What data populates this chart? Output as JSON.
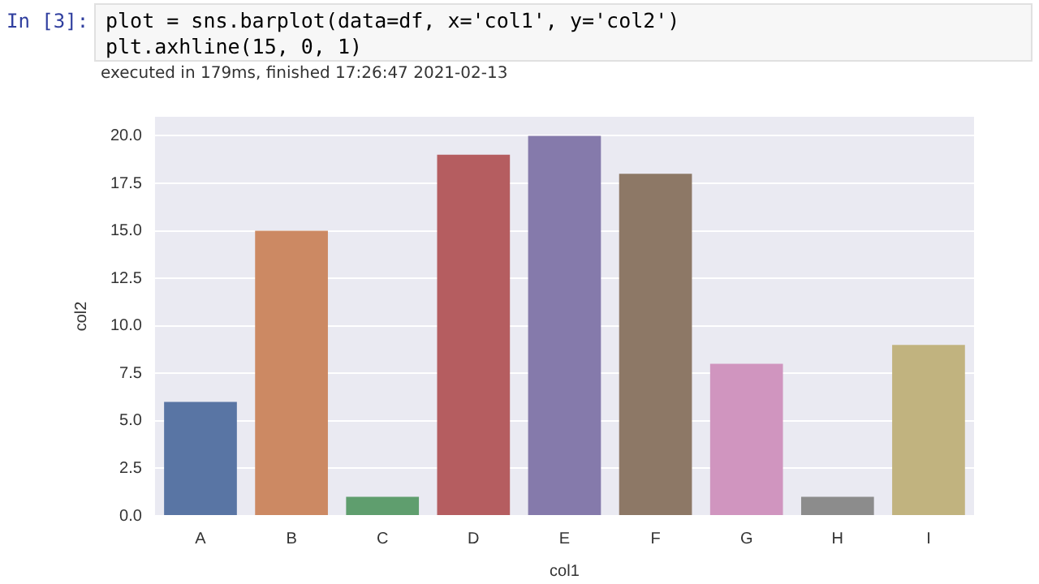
{
  "chart_data": {
    "type": "bar",
    "xlabel": "col1",
    "ylabel": "col2",
    "categories": [
      "A",
      "B",
      "C",
      "D",
      "E",
      "F",
      "G",
      "H",
      "I"
    ],
    "values": [
      6,
      15,
      1,
      19,
      20,
      18,
      8,
      1,
      9
    ],
    "colors": [
      "#5975a4",
      "#cc8963",
      "#5f9e6e",
      "#b55d60",
      "#857aab",
      "#8d7866",
      "#d095bf",
      "#8c8c8c",
      "#c1b37f"
    ],
    "ylim": [
      0,
      21
    ],
    "yticks": [
      {
        "value": 0,
        "label": "0.0"
      },
      {
        "value": 2.5,
        "label": "2.5"
      },
      {
        "value": 5,
        "label": "5.0"
      },
      {
        "value": 7.5,
        "label": "7.5"
      },
      {
        "value": 10,
        "label": "10.0"
      },
      {
        "value": 12.5,
        "label": "12.5"
      },
      {
        "value": 15,
        "label": "15.0"
      },
      {
        "value": 17.5,
        "label": "17.5"
      },
      {
        "value": 20,
        "label": "20.0"
      }
    ],
    "grid": "y",
    "annotations": [
      "In [3]:",
      "plot = sns.barplot(data=df, x='col1', y='col2')",
      "plt.axhline(15, 0, 1)",
      "executed in 179ms, finished 17:26:47 2021-02-13"
    ]
  }
}
